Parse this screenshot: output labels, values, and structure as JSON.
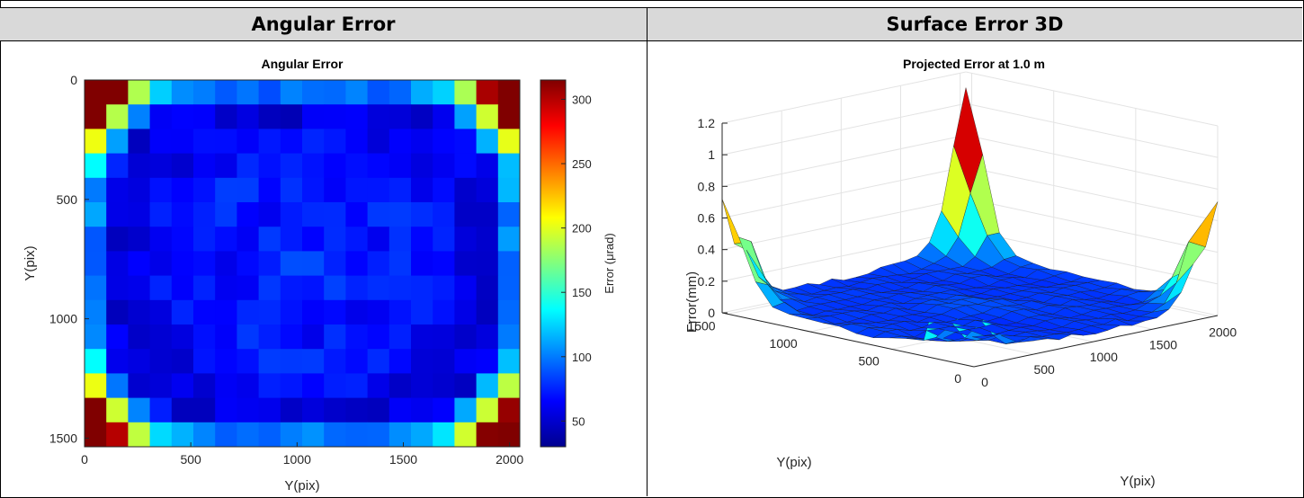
{
  "headers": {
    "left": "Angular Error",
    "right": "Surface Error 3D"
  },
  "chart_data": [
    {
      "type": "heatmap",
      "title": "Angular Error",
      "xlabel": "Y(pix)",
      "ylabel": "Y(pix)",
      "xlim": [
        0,
        2048
      ],
      "ylim": [
        0,
        1536
      ],
      "x_ticks": [
        "0",
        "500",
        "1000",
        "1500",
        "2000"
      ],
      "y_ticks": [
        "0",
        "500",
        "1000",
        "1500"
      ],
      "y_reversed": true,
      "grid_cols": 20,
      "grid_rows": 15,
      "colorbar": {
        "label": "Error (μrad)",
        "range": [
          30,
          315
        ],
        "ticks": [
          "50",
          "100",
          "150",
          "200",
          "250",
          "300"
        ],
        "colormap": "jet"
      },
      "description_values": {
        "corner_max": 310,
        "center_local_peak": 120,
        "interior_min": 40
      }
    },
    {
      "type": "surface",
      "title": "Projected Error at 1.0 m",
      "zlabel": "Error(mm)",
      "xlabel": "Y(pix)",
      "ylabel": "Y(pix)",
      "z_ticks": [
        "0",
        "0.2",
        "0.4",
        "0.6",
        "0.8",
        "1",
        "1.2"
      ],
      "x_ticks": [
        "0",
        "500",
        "1000",
        "1500",
        "2000"
      ],
      "y_ticks": [
        "0",
        "500",
        "1000",
        "1500"
      ],
      "zlim": [
        0,
        1.2
      ],
      "colormap": "jet"
    }
  ]
}
